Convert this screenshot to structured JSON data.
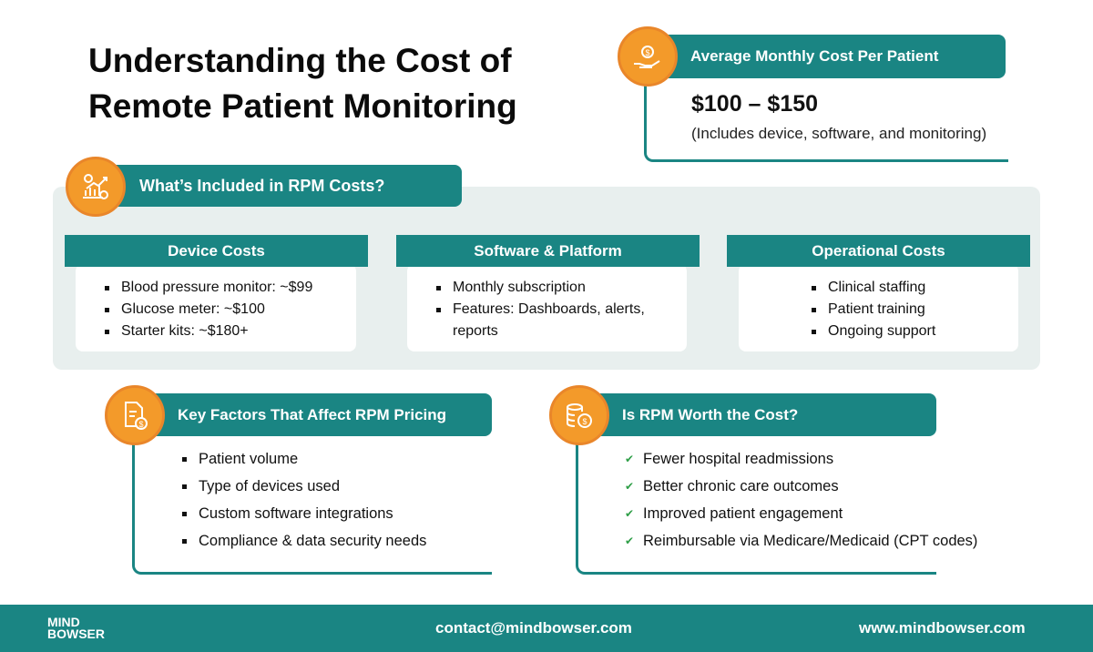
{
  "title": {
    "line1": "Understanding the Cost of",
    "line2": "Remote Patient Monitoring"
  },
  "avg": {
    "heading": "Average Monthly Cost Per Patient",
    "price": "$100 – $150",
    "note": "(Includes device, software, and monitoring)",
    "icon": "hand-coin-icon"
  },
  "included": {
    "heading": "What’s Included in RPM Costs?",
    "icon": "growth-chart-icon",
    "cards": [
      {
        "title": "Device Costs",
        "items": [
          "Blood pressure monitor: ~$99",
          "Glucose meter: ~$100",
          "Starter kits: ~$180+"
        ]
      },
      {
        "title": "Software & Platform",
        "items": [
          "Monthly subscription",
          "Features: Dashboards, alerts, reports"
        ]
      },
      {
        "title": "Operational Costs",
        "items": [
          "Clinical staffing",
          "Patient training",
          "Ongoing support"
        ]
      }
    ]
  },
  "factors": {
    "heading": "Key Factors That Affect RPM Pricing",
    "icon": "document-dollar-icon",
    "items": [
      "Patient volume",
      "Type of devices used",
      "Custom software integrations",
      "Compliance & data security needs"
    ]
  },
  "worth": {
    "heading": "Is RPM Worth the Cost?",
    "icon": "coins-icon",
    "items": [
      "Fewer hospital readmissions",
      "Better chronic care outcomes",
      "Improved patient engagement",
      "Reimbursable via Medicare/Medicaid (CPT codes)"
    ]
  },
  "footer": {
    "logo_line1": "MIND",
    "logo_line2": "BOWSER",
    "email": "contact@mindbowser.com",
    "website": "www.mindbowser.com"
  },
  "colors": {
    "teal": "#1a8583",
    "orange": "#f39a2a",
    "panel": "#e8efee"
  }
}
